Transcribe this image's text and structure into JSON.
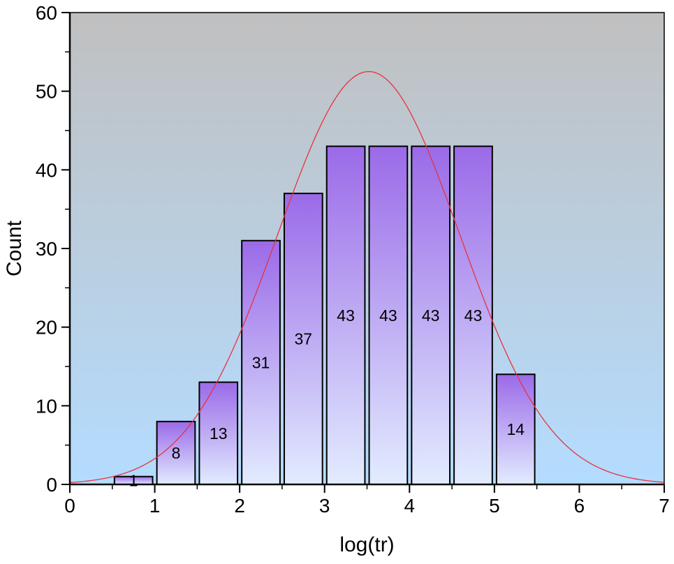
{
  "chart_data": {
    "type": "bar",
    "xlabel": "log(tr)",
    "ylabel": "Count",
    "xlim": [
      0,
      7
    ],
    "ylim": [
      0,
      60
    ],
    "x_ticks": [
      "0",
      "1",
      "2",
      "3",
      "4",
      "5",
      "6",
      "7"
    ],
    "y_ticks": [
      "0",
      "10",
      "20",
      "30",
      "40",
      "50",
      "60"
    ],
    "bin_width": 0.5,
    "bins": [
      {
        "start": 0.5,
        "end": 1.0,
        "value": 1,
        "label": "1"
      },
      {
        "start": 1.0,
        "end": 1.5,
        "value": 8,
        "label": "8"
      },
      {
        "start": 1.5,
        "end": 2.0,
        "value": 13,
        "label": "13"
      },
      {
        "start": 2.0,
        "end": 2.5,
        "value": 31,
        "label": "31"
      },
      {
        "start": 2.5,
        "end": 3.0,
        "value": 37,
        "label": "37"
      },
      {
        "start": 3.0,
        "end": 3.5,
        "value": 43,
        "label": "43"
      },
      {
        "start": 3.5,
        "end": 4.0,
        "value": 43,
        "label": "43"
      },
      {
        "start": 4.0,
        "end": 4.5,
        "value": 43,
        "label": "43"
      },
      {
        "start": 4.5,
        "end": 5.0,
        "value": 43,
        "label": "43"
      },
      {
        "start": 5.0,
        "end": 5.5,
        "value": 14,
        "label": "14"
      }
    ],
    "fit_curve": {
      "type": "normal",
      "mean": 3.52,
      "sigma": 1.07,
      "peak": 52.5,
      "color": "#e8323c"
    },
    "colors": {
      "background_top": "#c0c0c0",
      "background_bottom": "#b4dcff",
      "bar_top": "#9b6ae8",
      "bar_bottom": "#e2ecff",
      "bar_stroke": "#000000"
    }
  }
}
